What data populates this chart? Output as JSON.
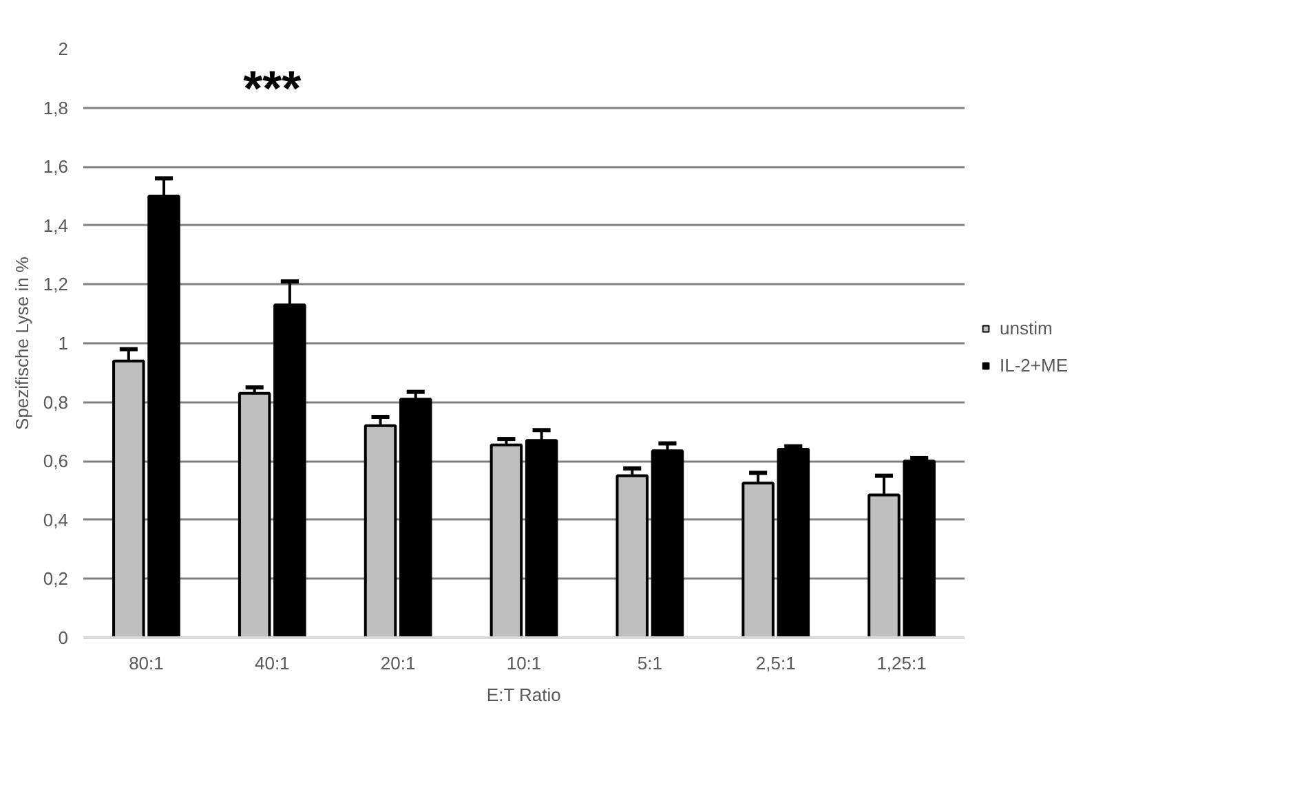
{
  "chart_data": {
    "type": "bar",
    "xlabel": "E:T Ratio",
    "ylabel": "Spezifische Lyse in %",
    "categories": [
      "80:1",
      "40:1",
      "20:1",
      "10:1",
      "5:1",
      "2,5:1",
      "1,25:1"
    ],
    "series": [
      {
        "name": "unstim",
        "color": "#bfbfbf",
        "values": [
          0.94,
          0.83,
          0.72,
          0.655,
          0.55,
          0.525,
          0.485
        ],
        "errors": [
          [
            0.94,
            0.98
          ],
          [
            0.83,
            0.85
          ],
          [
            0.72,
            0.75
          ],
          [
            0.655,
            0.675
          ],
          [
            0.55,
            0.575
          ],
          [
            0.525,
            0.56
          ],
          [
            0.485,
            0.55
          ]
        ]
      },
      {
        "name": "IL-2+ME",
        "color": "#000000",
        "values": [
          1.5,
          1.13,
          0.81,
          0.67,
          0.635,
          0.64,
          0.6
        ],
        "errors": [
          [
            1.5,
            1.56
          ],
          [
            1.13,
            1.21
          ],
          [
            0.81,
            0.835
          ],
          [
            0.67,
            0.705
          ],
          [
            0.635,
            0.66
          ],
          [
            0.64,
            0.65
          ],
          [
            0.6,
            0.61
          ]
        ]
      }
    ],
    "ylim": [
      0,
      2
    ],
    "yticks": [
      0,
      {
        "value": 0.2,
        "label": "0,2"
      },
      {
        "value": 0.4,
        "label": "0,4"
      },
      {
        "value": 0.6,
        "label": "0,6"
      },
      {
        "value": 0.8,
        "label": "0,8"
      },
      1,
      {
        "value": 1.2,
        "label": "1,2"
      },
      {
        "value": 1.4,
        "label": "1,4"
      },
      {
        "value": 1.6,
        "label": "1,6"
      },
      {
        "value": 1.8,
        "label": "1,8"
      },
      2
    ],
    "grid": "y",
    "legend": "right",
    "annotations": [
      "***"
    ]
  }
}
